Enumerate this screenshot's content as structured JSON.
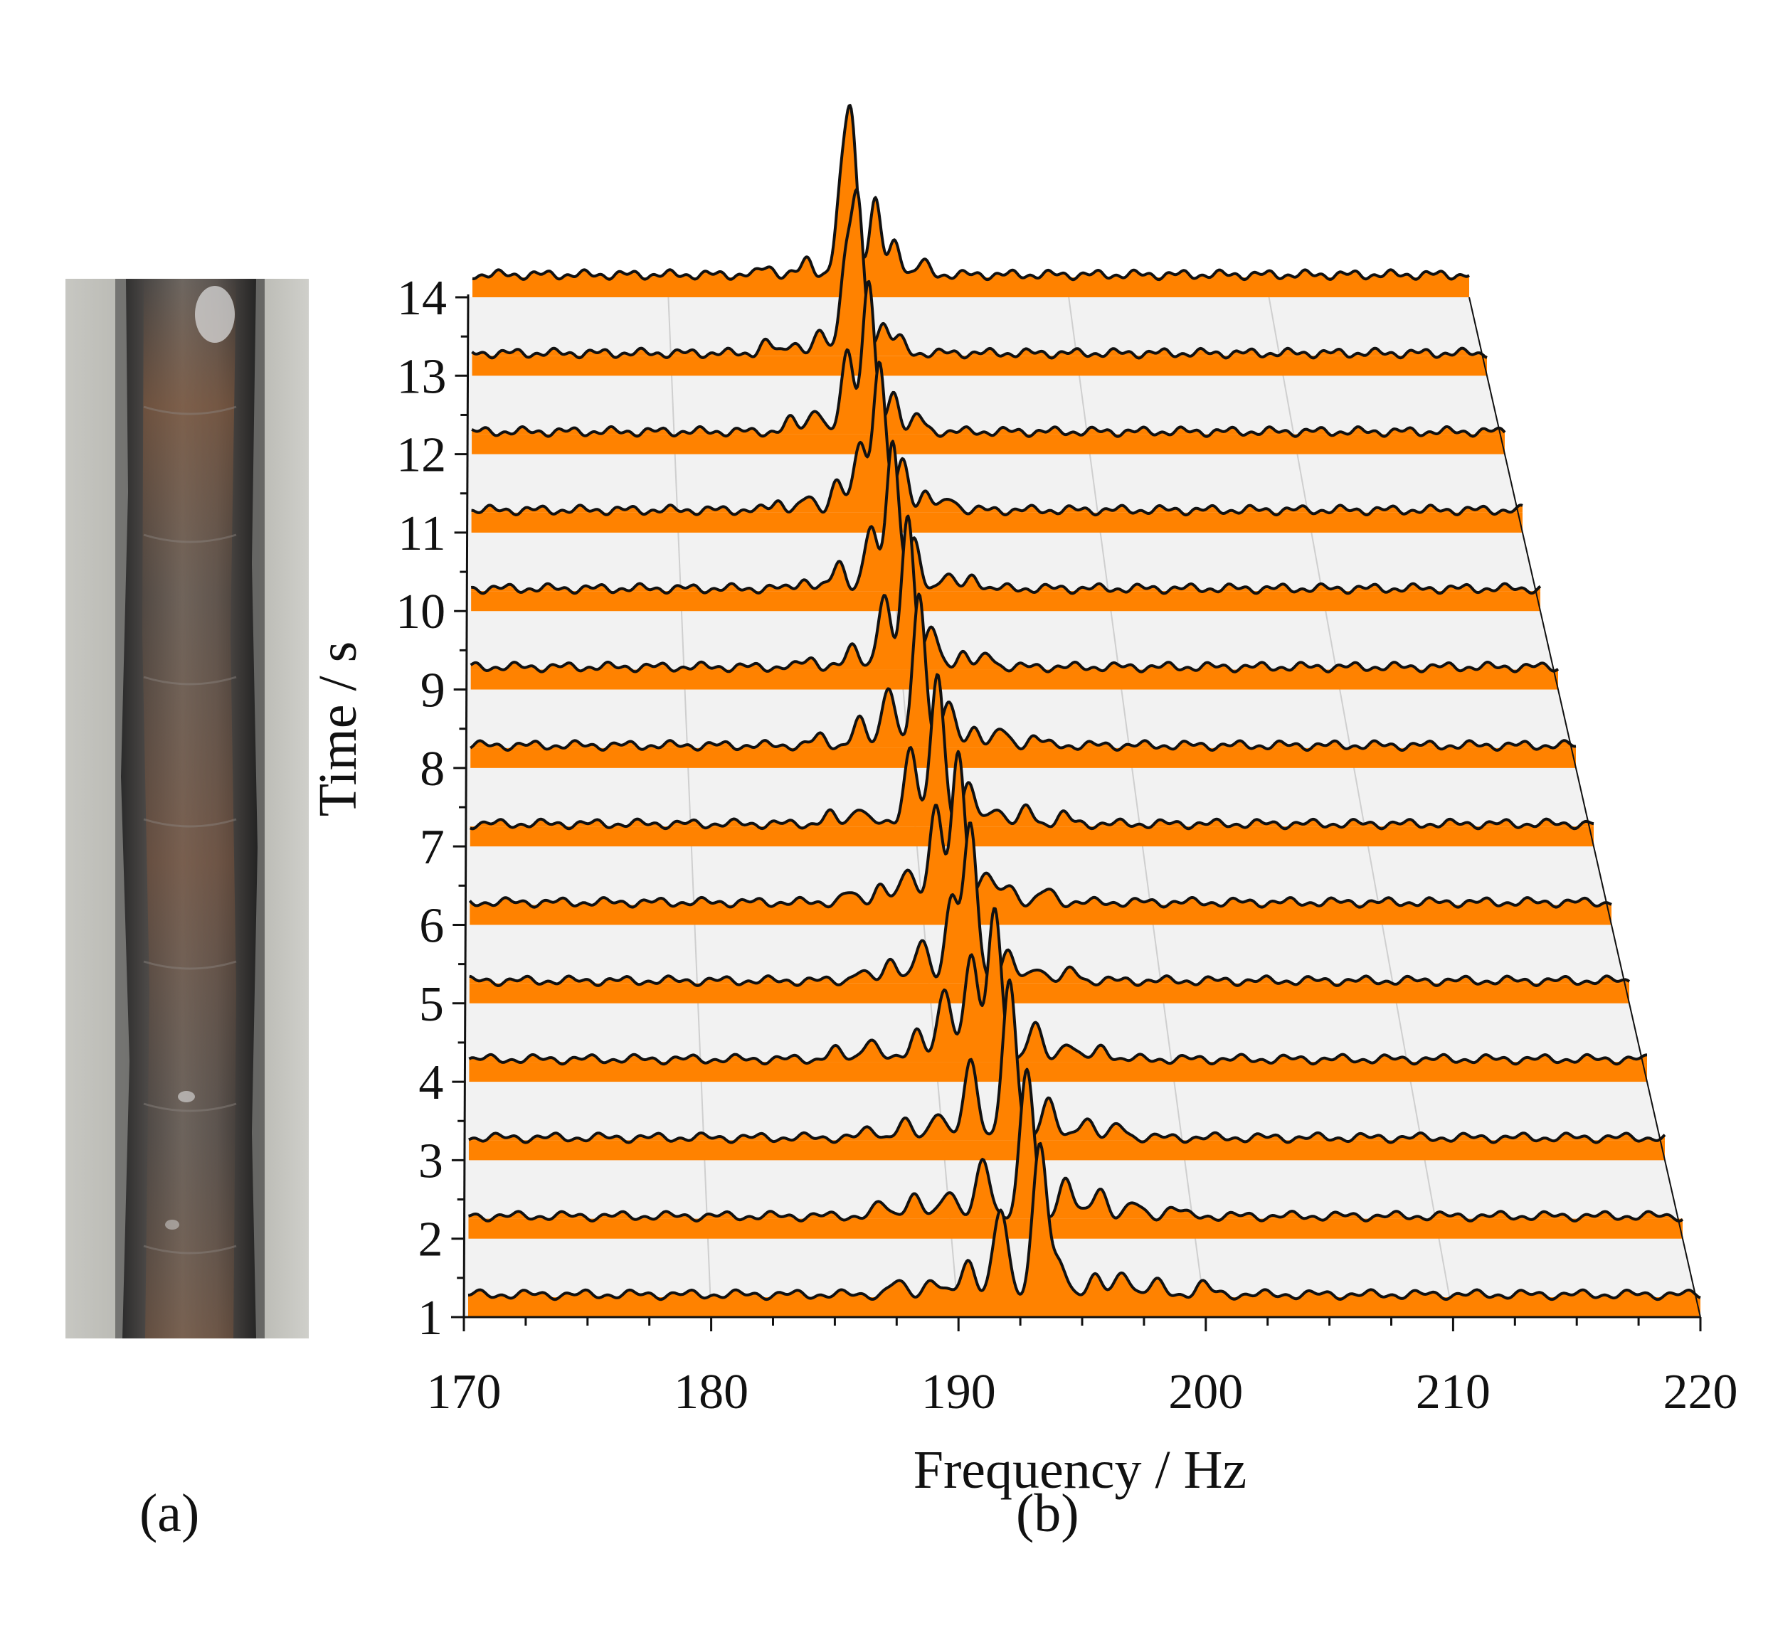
{
  "panels": {
    "a": {
      "label": "(a)",
      "content": "photo of weld bead"
    },
    "b": {
      "label": "(b)"
    }
  },
  "colors": {
    "fill": "#ff8200",
    "line": "#111111",
    "floor": "#f2f2f2",
    "grid": "#cfcfcf"
  },
  "chart_data": {
    "type": "line",
    "style": "waterfall",
    "title": "",
    "xlabel": "Frequency / Hz",
    "ylabel": "Time / s",
    "xlim": [
      170,
      220
    ],
    "x_ticks": [
      "170",
      "180",
      "190",
      "200",
      "210",
      "220"
    ],
    "y_ticks": [
      "1",
      "2",
      "3",
      "4",
      "5",
      "6",
      "7",
      "8",
      "9",
      "10",
      "11",
      "12",
      "13",
      "14"
    ],
    "grid": true,
    "series": [
      {
        "time": 1,
        "peaks": [
          {
            "f": 193.2,
            "a": 1.0
          },
          {
            "f": 191.6,
            "a": 0.55
          },
          {
            "f": 190.3,
            "a": 0.22
          },
          {
            "f": 194.0,
            "a": 0.2
          },
          {
            "f": 195.4,
            "a": 0.12
          },
          {
            "f": 196.6,
            "a": 0.15
          },
          {
            "f": 188.8,
            "a": 0.1
          },
          {
            "f": 187.4,
            "a": 0.08
          },
          {
            "f": 197.9,
            "a": 0.08
          },
          {
            "f": 199.8,
            "a": 0.07
          }
        ]
      },
      {
        "time": 2,
        "peaks": [
          {
            "f": 193.0,
            "a": 0.95
          },
          {
            "f": 191.2,
            "a": 0.35
          },
          {
            "f": 189.8,
            "a": 0.18
          },
          {
            "f": 188.3,
            "a": 0.14
          },
          {
            "f": 194.6,
            "a": 0.25
          },
          {
            "f": 196.0,
            "a": 0.18
          },
          {
            "f": 187.0,
            "a": 0.08
          },
          {
            "f": 197.4,
            "a": 0.08
          },
          {
            "f": 199.0,
            "a": 0.06
          }
        ]
      },
      {
        "time": 3,
        "peaks": [
          {
            "f": 192.6,
            "a": 1.0
          },
          {
            "f": 191.0,
            "a": 0.5
          },
          {
            "f": 189.6,
            "a": 0.18
          },
          {
            "f": 188.2,
            "a": 0.1
          },
          {
            "f": 194.2,
            "a": 0.25
          },
          {
            "f": 195.8,
            "a": 0.14
          },
          {
            "f": 197.2,
            "a": 0.08
          },
          {
            "f": 186.8,
            "a": 0.06
          }
        ]
      },
      {
        "time": 4,
        "peaks": [
          {
            "f": 192.3,
            "a": 0.97
          },
          {
            "f": 191.3,
            "a": 0.7
          },
          {
            "f": 190.2,
            "a": 0.45
          },
          {
            "f": 189.0,
            "a": 0.2
          },
          {
            "f": 187.0,
            "a": 0.14
          },
          {
            "f": 194.0,
            "a": 0.22
          },
          {
            "f": 195.4,
            "a": 0.12
          },
          {
            "f": 196.9,
            "a": 0.08
          },
          {
            "f": 185.5,
            "a": 0.06
          }
        ]
      },
      {
        "time": 5,
        "peaks": [
          {
            "f": 191.6,
            "a": 1.0
          },
          {
            "f": 190.8,
            "a": 0.55
          },
          {
            "f": 189.5,
            "a": 0.25
          },
          {
            "f": 188.2,
            "a": 0.15
          },
          {
            "f": 193.2,
            "a": 0.18
          },
          {
            "f": 194.5,
            "a": 0.1
          },
          {
            "f": 196.0,
            "a": 0.07
          },
          {
            "f": 186.8,
            "a": 0.06
          }
        ]
      },
      {
        "time": 6,
        "peaks": [
          {
            "f": 191.4,
            "a": 0.97
          },
          {
            "f": 190.4,
            "a": 0.62
          },
          {
            "f": 189.2,
            "a": 0.22
          },
          {
            "f": 188.0,
            "a": 0.12
          },
          {
            "f": 192.6,
            "a": 0.2
          },
          {
            "f": 193.6,
            "a": 0.12
          },
          {
            "f": 195.3,
            "a": 0.08
          },
          {
            "f": 186.6,
            "a": 0.06
          }
        ]
      },
      {
        "time": 7,
        "peaks": [
          {
            "f": 190.8,
            "a": 0.99
          },
          {
            "f": 189.6,
            "a": 0.5
          },
          {
            "f": 187.3,
            "a": 0.12
          },
          {
            "f": 192.2,
            "a": 0.25
          },
          {
            "f": 193.4,
            "a": 0.12
          },
          {
            "f": 194.8,
            "a": 0.1
          },
          {
            "f": 186.0,
            "a": 0.06
          },
          {
            "f": 196.4,
            "a": 0.06
          }
        ]
      },
      {
        "time": 8,
        "peaks": [
          {
            "f": 190.3,
            "a": 0.98
          },
          {
            "f": 188.9,
            "a": 0.4
          },
          {
            "f": 187.6,
            "a": 0.16
          },
          {
            "f": 191.6,
            "a": 0.28
          },
          {
            "f": 192.8,
            "a": 0.12
          },
          {
            "f": 194.0,
            "a": 0.1
          },
          {
            "f": 185.8,
            "a": 0.06
          },
          {
            "f": 195.5,
            "a": 0.06
          }
        ]
      },
      {
        "time": 9,
        "peaks": [
          {
            "f": 190.1,
            "a": 0.99
          },
          {
            "f": 189.0,
            "a": 0.45
          },
          {
            "f": 187.6,
            "a": 0.14
          },
          {
            "f": 191.2,
            "a": 0.25
          },
          {
            "f": 192.6,
            "a": 0.1
          },
          {
            "f": 193.8,
            "a": 0.08
          },
          {
            "f": 185.6,
            "a": 0.06
          }
        ]
      },
      {
        "time": 10,
        "peaks": [
          {
            "f": 189.7,
            "a": 0.98
          },
          {
            "f": 188.7,
            "a": 0.4
          },
          {
            "f": 187.2,
            "a": 0.18
          },
          {
            "f": 190.7,
            "a": 0.3
          },
          {
            "f": 192.2,
            "a": 0.1
          },
          {
            "f": 193.5,
            "a": 0.08
          },
          {
            "f": 185.5,
            "a": 0.06
          }
        ]
      },
      {
        "time": 11,
        "peaks": [
          {
            "f": 189.4,
            "a": 0.99
          },
          {
            "f": 188.5,
            "a": 0.45
          },
          {
            "f": 187.4,
            "a": 0.2
          },
          {
            "f": 190.5,
            "a": 0.32
          },
          {
            "f": 191.6,
            "a": 0.12
          },
          {
            "f": 192.8,
            "a": 0.08
          },
          {
            "f": 186.0,
            "a": 0.08
          },
          {
            "f": 184.6,
            "a": 0.06
          }
        ]
      },
      {
        "time": 12,
        "peaks": [
          {
            "f": 189.2,
            "a": 0.99
          },
          {
            "f": 188.2,
            "a": 0.55
          },
          {
            "f": 186.6,
            "a": 0.16
          },
          {
            "f": 190.4,
            "a": 0.26
          },
          {
            "f": 191.6,
            "a": 0.1
          },
          {
            "f": 185.5,
            "a": 0.08
          }
        ]
      },
      {
        "time": 13,
        "peaks": [
          {
            "f": 189.0,
            "a": 0.99
          },
          {
            "f": 188.4,
            "a": 0.6
          },
          {
            "f": 187.2,
            "a": 0.14
          },
          {
            "f": 190.2,
            "a": 0.2
          },
          {
            "f": 191.0,
            "a": 0.1
          },
          {
            "f": 185.8,
            "a": 0.08
          },
          {
            "f": 184.5,
            "a": 0.07
          }
        ]
      },
      {
        "time": 14,
        "peaks": [
          {
            "f": 189.0,
            "a": 1.0
          },
          {
            "f": 188.5,
            "a": 0.5
          },
          {
            "f": 190.2,
            "a": 0.48
          },
          {
            "f": 191.2,
            "a": 0.22
          },
          {
            "f": 186.8,
            "a": 0.1
          },
          {
            "f": 192.6,
            "a": 0.08
          },
          {
            "f": 184.8,
            "a": 0.06
          }
        ]
      }
    ]
  }
}
